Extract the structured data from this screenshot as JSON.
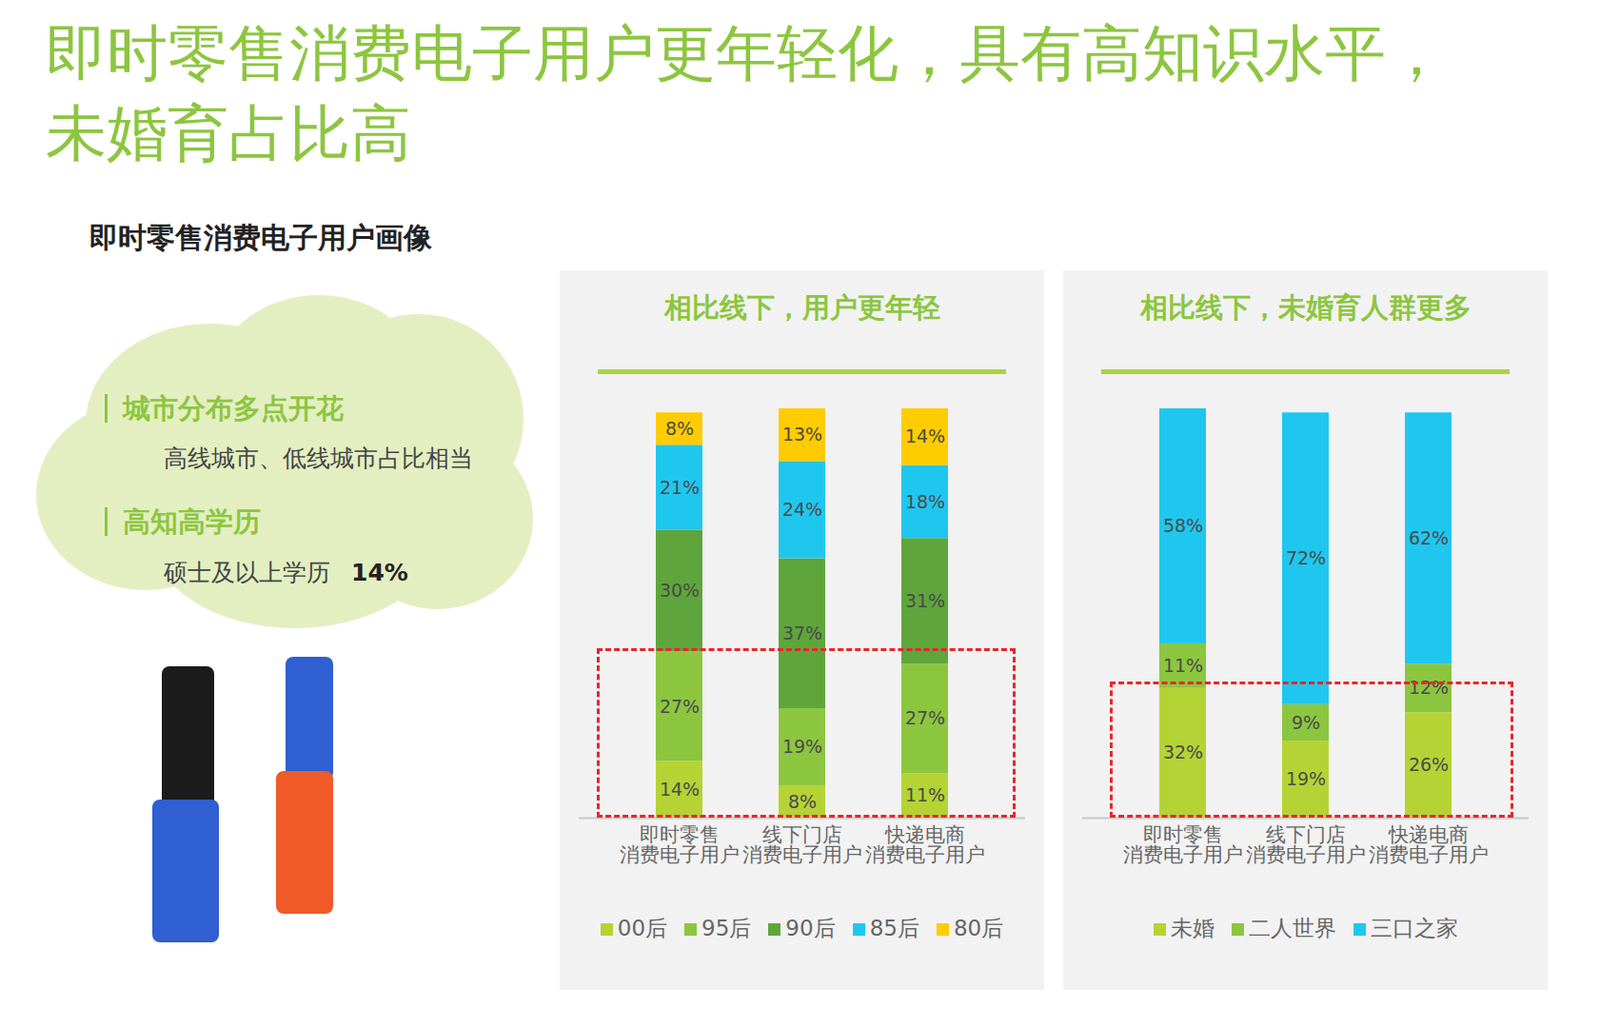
{
  "header": {
    "title": "即时零售消费电子用户更年轻化，具有高知识水平，\n未婚育占比高",
    "subtitle": "即时零售消费电子用户画像"
  },
  "profile": [
    {
      "heading": "城市分布多点开花",
      "text": "高线城市、低线城市占比相当"
    },
    {
      "heading": "高知高学历",
      "text": "硕士及以上学历",
      "value": 14,
      "value_label": "14%"
    }
  ],
  "chart_data": [
    {
      "type": "bar",
      "title": "相比线下，用户更年轻",
      "stacked": true,
      "data_labels": true,
      "tick_labels": "x",
      "legend": "bottom",
      "categories": [
        "即时零售\n消费电子用户",
        "线下门店\n消费电子用户",
        "快递电商\n消费电子用户"
      ],
      "ylim": [
        0,
        101
      ],
      "yticks": [],
      "series": [
        {
          "name": "00后",
          "color": "#b5d334",
          "values": [
            14,
            8,
            11
          ],
          "value_labels": [
            "14%",
            "8%",
            "11%"
          ]
        },
        {
          "name": "95后",
          "color": "#8cc63f",
          "values": [
            27,
            19,
            27
          ],
          "value_labels": [
            "27%",
            "19%",
            "27%"
          ]
        },
        {
          "name": "90后",
          "color": "#5ea63b",
          "values": [
            30,
            37,
            31
          ],
          "value_labels": [
            "30%",
            "37%",
            "31%"
          ]
        },
        {
          "name": "85后",
          "color": "#1fc7ef",
          "values": [
            21,
            24,
            18
          ],
          "value_labels": [
            "21%",
            "24%",
            "18%"
          ]
        },
        {
          "name": "80后",
          "color": "#ffcc00",
          "values": [
            8,
            13,
            14
          ],
          "value_labels": [
            "8%",
            "13%",
            "14%"
          ]
        }
      ]
    },
    {
      "type": "bar",
      "title": "相比线下，未婚育人群更多",
      "stacked": true,
      "data_labels": true,
      "tick_labels": "x",
      "legend": "bottom",
      "categories": [
        "即时零售\n消费电子用户",
        "线下门店\n消费电子用户",
        "快递电商\n消费电子用户"
      ],
      "ylim": [
        0,
        101
      ],
      "yticks": [],
      "series": [
        {
          "name": "未婚",
          "color": "#b5d334",
          "values": [
            32,
            19,
            26
          ],
          "value_labels": [
            "32%",
            "19%",
            "26%"
          ]
        },
        {
          "name": "二人世界",
          "color": "#8cc63f",
          "values": [
            11,
            9,
            12
          ],
          "value_labels": [
            "11%",
            "9%",
            "12%"
          ]
        },
        {
          "name": "三口之家",
          "color": "#1fc7ef",
          "values": [
            58,
            72,
            62
          ],
          "value_labels": [
            "58%",
            "72%",
            "62%"
          ]
        }
      ]
    }
  ]
}
